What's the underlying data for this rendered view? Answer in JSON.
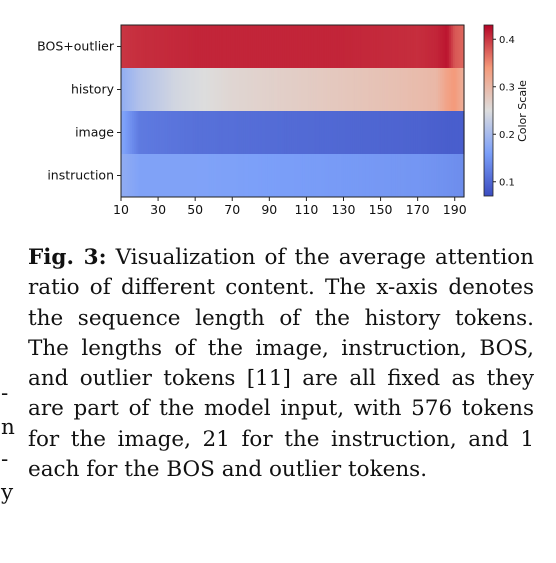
{
  "chart_data": {
    "type": "heatmap",
    "rows": [
      "BOS+outlier",
      "history",
      "image",
      "instruction"
    ],
    "x_ticks": [
      10,
      30,
      50,
      70,
      90,
      110,
      130,
      150,
      170,
      190
    ],
    "x_range": [
      10,
      195
    ],
    "colorbar": {
      "label": "Color Scale",
      "ticks": [
        0.1,
        0.2,
        0.3,
        0.4
      ],
      "range": [
        0.07,
        0.43
      ],
      "colormap": "coolwarm"
    },
    "profiles": [
      {
        "row": "BOS+outlier",
        "x": [
          10,
          20,
          50,
          90,
          130,
          170,
          180,
          186,
          190,
          195
        ],
        "values": [
          0.4,
          0.405,
          0.41,
          0.41,
          0.41,
          0.405,
          0.41,
          0.42,
          0.38,
          0.37
        ]
      },
      {
        "row": "history",
        "x": [
          10,
          20,
          40,
          70,
          100,
          130,
          160,
          180,
          186,
          190,
          195
        ],
        "values": [
          0.18,
          0.21,
          0.24,
          0.26,
          0.27,
          0.28,
          0.29,
          0.3,
          0.33,
          0.34,
          0.31
        ]
      },
      {
        "row": "image",
        "x": [
          10,
          20,
          50,
          90,
          130,
          170,
          185,
          195
        ],
        "values": [
          0.17,
          0.12,
          0.11,
          0.105,
          0.1,
          0.095,
          0.09,
          0.09
        ]
      },
      {
        "row": "instruction",
        "x": [
          10,
          20,
          50,
          90,
          130,
          170,
          185,
          195
        ],
        "values": [
          0.18,
          0.165,
          0.165,
          0.16,
          0.155,
          0.15,
          0.145,
          0.14
        ]
      }
    ]
  },
  "caption": {
    "label": "Fig. 3:",
    "text": "Visualization of the average attention ratio of different content. The x-axis denotes the sequence length of the history tokens. The lengths of the image, instruction, BOS, and outlier tokens [11] are all fixed as they are part of the model input, with 576 tokens for the image, 21 for the instruction, and 1 each for the BOS and outlier tokens."
  },
  "edge_marks": [
    "-",
    "n",
    "-",
    "y"
  ]
}
